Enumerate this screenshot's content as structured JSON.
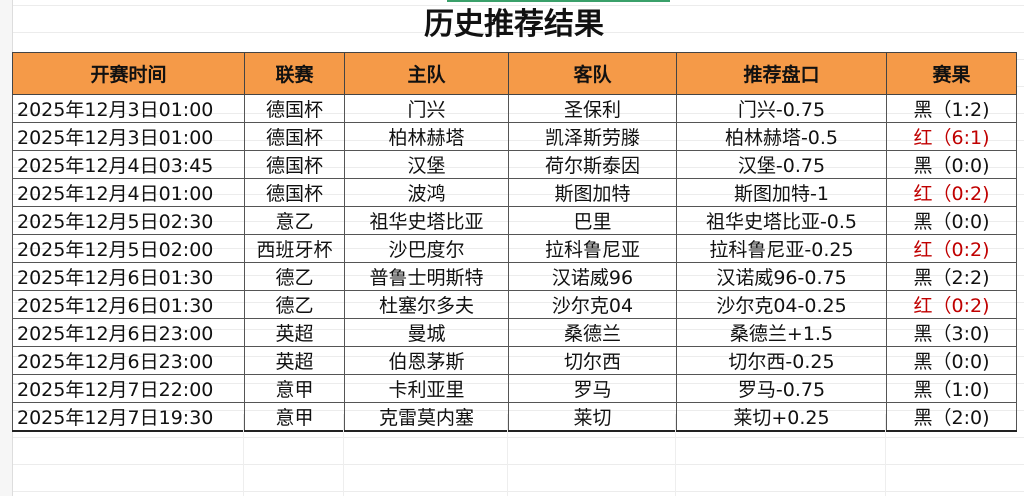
{
  "title": "历史推荐结果",
  "headers": [
    "开赛时间",
    "联赛",
    "主队",
    "客队",
    "推荐盘口",
    "赛果"
  ],
  "colors": {
    "header_bg": "#f59a48",
    "win_red": "#c00000",
    "loss_black": "#111111"
  },
  "rows": [
    {
      "time": "2025年12月3日01:00",
      "league": "德国杯",
      "home": "门兴",
      "away": "圣保利",
      "pick": "门兴-0.75",
      "result": "黑（1:2)",
      "win": false
    },
    {
      "time": "2025年12月3日01:00",
      "league": "德国杯",
      "home": "柏林赫塔",
      "away": "凯泽斯劳滕",
      "pick": "柏林赫塔-0.5",
      "result": "红（6:1)",
      "win": true
    },
    {
      "time": "2025年12月4日03:45",
      "league": "德国杯",
      "home": "汉堡",
      "away": "荷尔斯泰因",
      "pick": "汉堡-0.75",
      "result": "黑（0:0)",
      "win": false
    },
    {
      "time": "2025年12月4日01:00",
      "league": "德国杯",
      "home": "波鸿",
      "away": "斯图加特",
      "pick": "斯图加特-1",
      "result": "红（0:2)",
      "win": true
    },
    {
      "time": "2025年12月5日02:30",
      "league": "意乙",
      "home": "祖华史塔比亚",
      "away": "巴里",
      "pick": "祖华史塔比亚-0.5",
      "result": "黑（0:0)",
      "win": false
    },
    {
      "time": "2025年12月5日02:00",
      "league": "西班牙杯",
      "home": "沙巴度尔",
      "away": "拉科鲁尼亚",
      "pick": "拉科鲁尼亚-0.25",
      "result": "红（0:2)",
      "win": true
    },
    {
      "time": "2025年12月6日01:30",
      "league": "德乙",
      "home": "普鲁士明斯特",
      "away": "汉诺威96",
      "pick": "汉诺威96-0.75",
      "result": "黑（2:2)",
      "win": false
    },
    {
      "time": "2025年12月6日01:30",
      "league": "德乙",
      "home": "杜塞尔多夫",
      "away": "沙尔克04",
      "pick": "沙尔克04-0.25",
      "result": "红（0:2)",
      "win": true
    },
    {
      "time": "2025年12月6日23:00",
      "league": "英超",
      "home": "曼城",
      "away": "桑德兰",
      "pick": "桑德兰+1.5",
      "result": "黑（3:0)",
      "win": false
    },
    {
      "time": "2025年12月6日23:00",
      "league": "英超",
      "home": "伯恩茅斯",
      "away": "切尔西",
      "pick": "切尔西-0.25",
      "result": "黑（0:0)",
      "win": false
    },
    {
      "time": "2025年12月7日22:00",
      "league": "意甲",
      "home": "卡利亚里",
      "away": "罗马",
      "pick": "罗马-0.75",
      "result": "黑（1:0)",
      "win": false
    },
    {
      "time": "2025年12月7日19:30",
      "league": "意甲",
      "home": "克雷莫内塞",
      "away": "莱切",
      "pick": "莱切+0.25",
      "result": "黑（2:0)",
      "win": false
    }
  ]
}
